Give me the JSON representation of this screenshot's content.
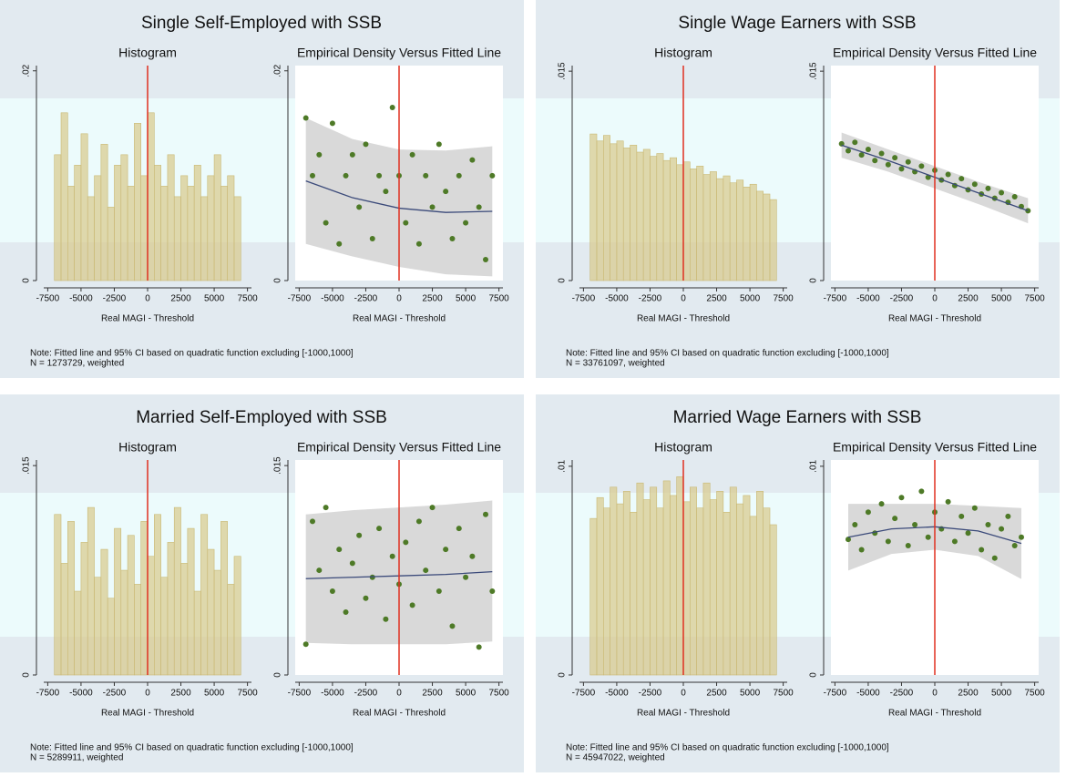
{
  "panels": [
    {
      "title": "Single Self-Employed with SSB",
      "note": "Note: Fitted line and 95% CI based on quadratic function excluding [-1000,1000]",
      "n": "N = 1273729, weighted"
    },
    {
      "title": "Single Wage Earners with SSB",
      "note": "Note: Fitted line and 95% CI based on quadratic function excluding [-1000,1000]",
      "n": "N = 33761097, weighted"
    },
    {
      "title": "Married Self-Employed with SSB",
      "note": "Note: Fitted line and 95% CI based on quadratic function excluding [-1000,1000]",
      "n": "N = 5289911, weighted"
    },
    {
      "title": "Married Wage Earners with SSB",
      "note": "Note: Fitted line and 95% CI based on quadratic function excluding [-1000,1000]",
      "n": "N = 45947022, weighted"
    }
  ],
  "chart_data": [
    {
      "type": "histogram",
      "title": "Histogram",
      "xlabel": "Real MAGI - Threshold",
      "color": "#d8c98a",
      "vline": 0,
      "vline_color": "#e03020",
      "bins": [
        -7000,
        -6500,
        -6000,
        -5500,
        -5000,
        -4500,
        -4000,
        -3500,
        -3000,
        -2500,
        -2000,
        -1500,
        -1000,
        -500,
        0,
        500,
        1000,
        1500,
        2000,
        2500,
        3000,
        3500,
        4000,
        4500,
        5000,
        5500,
        6000,
        6500,
        7000
      ],
      "values": [
        0.012,
        0.016,
        0.009,
        0.011,
        0.014,
        0.008,
        0.01,
        0.013,
        0.007,
        0.011,
        0.012,
        0.009,
        0.015,
        0.01,
        0.016,
        0.011,
        0.009,
        0.012,
        0.008,
        0.01,
        0.009,
        0.011,
        0.008,
        0.01,
        0.012,
        0.009,
        0.01,
        0.008
      ],
      "xlim": [
        -7800,
        7800
      ],
      "xticks": [
        -7500,
        -5000,
        -2500,
        0,
        2500,
        5000,
        7500
      ],
      "ylim": [
        0,
        0.0205
      ],
      "yticks": [
        0,
        {
          "value": 0.02,
          "label": ".02"
        }
      ]
    },
    {
      "type": "scatter",
      "title": "Empirical Density Versus Fitted Line",
      "xlabel": "Real MAGI - Threshold",
      "color": "#4e7a27",
      "fit_color": "#3b4a7a",
      "ci_color": "#d9d9d9",
      "vline": 0,
      "vline_color": "#e03020",
      "x": [
        -7000,
        -6500,
        -6000,
        -5500,
        -5000,
        -4500,
        -4000,
        -3500,
        -3000,
        -2500,
        -2000,
        -1500,
        -1000,
        -500,
        0,
        500,
        1000,
        1500,
        2000,
        2500,
        3000,
        3500,
        4000,
        4500,
        5000,
        5500,
        6000,
        6500,
        7000
      ],
      "values": [
        0.0155,
        0.01,
        0.012,
        0.0055,
        0.015,
        0.0035,
        0.01,
        0.012,
        0.007,
        0.013,
        0.004,
        0.01,
        0.0085,
        0.0165,
        0.01,
        0.0055,
        0.012,
        0.0035,
        0.01,
        0.007,
        0.013,
        0.0085,
        0.004,
        0.01,
        0.0055,
        0.0115,
        0.007,
        0.002,
        0.01
      ],
      "fit": {
        "x": [
          -7000,
          -3500,
          0,
          3500,
          7000
        ],
        "y": [
          0.0095,
          0.0079,
          0.0069,
          0.0065,
          0.0066
        ]
      },
      "ci_upper": [
        0.0155,
        0.0135,
        0.0125,
        0.0124,
        0.0128
      ],
      "ci_lower": [
        0.0035,
        0.0023,
        0.0013,
        0.0006,
        0.0004
      ],
      "xlim": [
        -7800,
        7800
      ],
      "xticks": [
        -7500,
        -5000,
        -2500,
        0,
        2500,
        5000,
        7500
      ],
      "ylim": [
        0,
        0.0205
      ],
      "yticks": [
        0,
        {
          "value": 0.02,
          "label": ".02"
        }
      ]
    },
    {
      "type": "histogram",
      "title": "Histogram",
      "xlabel": "Real MAGI - Threshold",
      "color": "#d8c98a",
      "vline": 0,
      "vline_color": "#e03020",
      "bins": [
        -7000,
        -6500,
        -6000,
        -5500,
        -5000,
        -4500,
        -4000,
        -3500,
        -3000,
        -2500,
        -2000,
        -1500,
        -1000,
        -500,
        0,
        500,
        1000,
        1500,
        2000,
        2500,
        3000,
        3500,
        4000,
        4500,
        5000,
        5500,
        6000,
        6500,
        7000
      ],
      "values": [
        0.0105,
        0.01,
        0.0104,
        0.0098,
        0.01,
        0.0095,
        0.0097,
        0.0092,
        0.0094,
        0.0089,
        0.0091,
        0.0086,
        0.0088,
        0.0083,
        0.0085,
        0.008,
        0.0082,
        0.0076,
        0.0078,
        0.0073,
        0.0075,
        0.007,
        0.0072,
        0.0067,
        0.0069,
        0.0064,
        0.0062,
        0.0058
      ],
      "xlim": [
        -7800,
        7800
      ],
      "xticks": [
        -7500,
        -5000,
        -2500,
        0,
        2500,
        5000,
        7500
      ],
      "ylim": [
        0,
        0.0154
      ],
      "yticks": [
        0,
        {
          "value": 0.015,
          "label": ".015"
        }
      ]
    },
    {
      "type": "scatter",
      "title": "Empirical Density Versus Fitted Line",
      "xlabel": "Real MAGI - Threshold",
      "color": "#4e7a27",
      "fit_color": "#3b4a7a",
      "ci_color": "#d9d9d9",
      "vline": 0,
      "vline_color": "#e03020",
      "x": [
        -7000,
        -6500,
        -6000,
        -5500,
        -5000,
        -4500,
        -4000,
        -3500,
        -3000,
        -2500,
        -2000,
        -1500,
        -1000,
        -500,
        0,
        500,
        1000,
        1500,
        2000,
        2500,
        3000,
        3500,
        4000,
        4500,
        5000,
        5500,
        6000,
        6500,
        7000
      ],
      "values": [
        0.0098,
        0.0093,
        0.0099,
        0.009,
        0.0094,
        0.0086,
        0.0091,
        0.0083,
        0.0088,
        0.008,
        0.0085,
        0.0078,
        0.0082,
        0.0074,
        0.0079,
        0.0072,
        0.0076,
        0.0068,
        0.0073,
        0.0065,
        0.0069,
        0.0062,
        0.0066,
        0.0059,
        0.0063,
        0.0056,
        0.006,
        0.0053,
        0.005
      ],
      "fit": {
        "x": [
          -7000,
          -3500,
          0,
          3500,
          7000
        ],
        "y": [
          0.0097,
          0.0086,
          0.0074,
          0.0062,
          0.005
        ]
      },
      "ci_upper": [
        0.0106,
        0.0094,
        0.0082,
        0.007,
        0.0059
      ],
      "ci_lower": [
        0.0088,
        0.0078,
        0.0066,
        0.0054,
        0.0041
      ],
      "xlim": [
        -7800,
        7800
      ],
      "xticks": [
        -7500,
        -5000,
        -2500,
        0,
        2500,
        5000,
        7500
      ],
      "ylim": [
        0,
        0.0154
      ],
      "yticks": [
        0,
        {
          "value": 0.015,
          "label": ".015"
        }
      ]
    },
    {
      "type": "histogram",
      "title": "Histogram",
      "xlabel": "Real MAGI - Threshold",
      "color": "#d8c98a",
      "vline": 0,
      "vline_color": "#e03020",
      "bins": [
        -7000,
        -6500,
        -6000,
        -5500,
        -5000,
        -4500,
        -4000,
        -3500,
        -3000,
        -2500,
        -2000,
        -1500,
        -1000,
        -500,
        0,
        500,
        1000,
        1500,
        2000,
        2500,
        3000,
        3500,
        4000,
        4500,
        5000,
        5500,
        6000,
        6500,
        7000
      ],
      "values": [
        0.0115,
        0.008,
        0.011,
        0.006,
        0.0095,
        0.012,
        0.007,
        0.009,
        0.0055,
        0.0105,
        0.0075,
        0.01,
        0.0065,
        0.011,
        0.0085,
        0.0115,
        0.007,
        0.0095,
        0.012,
        0.008,
        0.0105,
        0.006,
        0.0115,
        0.009,
        0.0075,
        0.011,
        0.0065,
        0.0085
      ],
      "xlim": [
        -7800,
        7800
      ],
      "xticks": [
        -7500,
        -5000,
        -2500,
        0,
        2500,
        5000,
        7500
      ],
      "ylim": [
        0,
        0.0154
      ],
      "yticks": [
        0,
        {
          "value": 0.015,
          "label": ".015"
        }
      ]
    },
    {
      "type": "scatter",
      "title": "Empirical Density Versus Fitted Line",
      "xlabel": "Real MAGI - Threshold",
      "color": "#4e7a27",
      "fit_color": "#3b4a7a",
      "ci_color": "#d9d9d9",
      "vline": 0,
      "vline_color": "#e03020",
      "x": [
        -7000,
        -6500,
        -6000,
        -5500,
        -5000,
        -4500,
        -4000,
        -3500,
        -3000,
        -2500,
        -2000,
        -1500,
        -1000,
        -500,
        0,
        500,
        1000,
        1500,
        2000,
        2500,
        3000,
        3500,
        4000,
        4500,
        5000,
        5500,
        6000,
        6500,
        7000
      ],
      "values": [
        0.0022,
        0.011,
        0.0075,
        0.012,
        0.006,
        0.009,
        0.0045,
        0.008,
        0.01,
        0.0055,
        0.007,
        0.0105,
        0.004,
        0.0085,
        0.0065,
        0.0095,
        0.005,
        0.011,
        0.0075,
        0.012,
        0.006,
        0.009,
        0.0035,
        0.0105,
        0.007,
        0.0085,
        0.002,
        0.0115,
        0.006
      ],
      "fit": {
        "x": [
          -7000,
          -3500,
          0,
          3500,
          7000
        ],
        "y": [
          0.0069,
          0.007,
          0.0071,
          0.0072,
          0.0074
        ]
      },
      "ci_upper": [
        0.0115,
        0.0118,
        0.012,
        0.0122,
        0.0125
      ],
      "ci_lower": [
        0.0023,
        0.0022,
        0.0022,
        0.0022,
        0.0024
      ],
      "xlim": [
        -7800,
        7800
      ],
      "xticks": [
        -7500,
        -5000,
        -2500,
        0,
        2500,
        5000,
        7500
      ],
      "ylim": [
        0,
        0.0154
      ],
      "yticks": [
        0,
        {
          "value": 0.015,
          "label": ".015"
        }
      ]
    },
    {
      "type": "histogram",
      "title": "Histogram",
      "xlabel": "Real MAGI - Threshold",
      "color": "#d8c98a",
      "vline": 0,
      "vline_color": "#e03020",
      "bins": [
        -7000,
        -6500,
        -6000,
        -5500,
        -5000,
        -4500,
        -4000,
        -3500,
        -3000,
        -2500,
        -2000,
        -1500,
        -1000,
        -500,
        0,
        500,
        1000,
        1500,
        2000,
        2500,
        3000,
        3500,
        4000,
        4500,
        5000,
        5500,
        6000,
        6500,
        7000
      ],
      "values": [
        0.0075,
        0.0085,
        0.008,
        0.009,
        0.0082,
        0.0088,
        0.0078,
        0.0092,
        0.0084,
        0.009,
        0.008,
        0.0093,
        0.0086,
        0.0095,
        0.0083,
        0.009,
        0.008,
        0.0092,
        0.0084,
        0.0088,
        0.0078,
        0.009,
        0.0082,
        0.0086,
        0.0076,
        0.0088,
        0.008,
        0.0072
      ],
      "xlim": [
        -7800,
        7800
      ],
      "xticks": [
        -7500,
        -5000,
        -2500,
        0,
        2500,
        5000,
        7500
      ],
      "ylim": [
        0,
        0.0103
      ],
      "yticks": [
        0,
        {
          "value": 0.01,
          "label": ".01"
        }
      ]
    },
    {
      "type": "scatter",
      "title": "Empirical Density Versus Fitted Line",
      "xlabel": "Real MAGI - Threshold",
      "color": "#4e7a27",
      "fit_color": "#3b4a7a",
      "ci_color": "#d9d9d9",
      "vline": 0,
      "vline_color": "#e03020",
      "x": [
        -6500,
        -6000,
        -5500,
        -5000,
        -4500,
        -4000,
        -3500,
        -3000,
        -2500,
        -2000,
        -1500,
        -1000,
        -500,
        0,
        500,
        1000,
        1500,
        2000,
        2500,
        3000,
        3500,
        4000,
        4500,
        5000,
        5500,
        6000,
        6500
      ],
      "values": [
        0.0065,
        0.0072,
        0.006,
        0.0078,
        0.0068,
        0.0082,
        0.0064,
        0.0075,
        0.0085,
        0.0062,
        0.0072,
        0.0088,
        0.0066,
        0.0078,
        0.007,
        0.0083,
        0.0064,
        0.0076,
        0.0068,
        0.008,
        0.006,
        0.0072,
        0.0056,
        0.007,
        0.0076,
        0.0062,
        0.0066
      ],
      "fit": {
        "x": [
          -6500,
          -3250,
          0,
          3250,
          6500
        ],
        "y": [
          0.0066,
          0.007,
          0.0071,
          0.0069,
          0.0063
        ]
      },
      "ci_upper": [
        0.0082,
        0.0082,
        0.0082,
        0.0081,
        0.008
      ],
      "ci_lower": [
        0.005,
        0.0058,
        0.006,
        0.0057,
        0.0046
      ],
      "xlim": [
        -7800,
        7800
      ],
      "xticks": [
        -7500,
        -5000,
        -2500,
        0,
        2500,
        5000,
        7500
      ],
      "ylim": [
        0,
        0.0103
      ],
      "yticks": [
        0,
        {
          "value": 0.01,
          "label": ".01"
        }
      ]
    }
  ]
}
